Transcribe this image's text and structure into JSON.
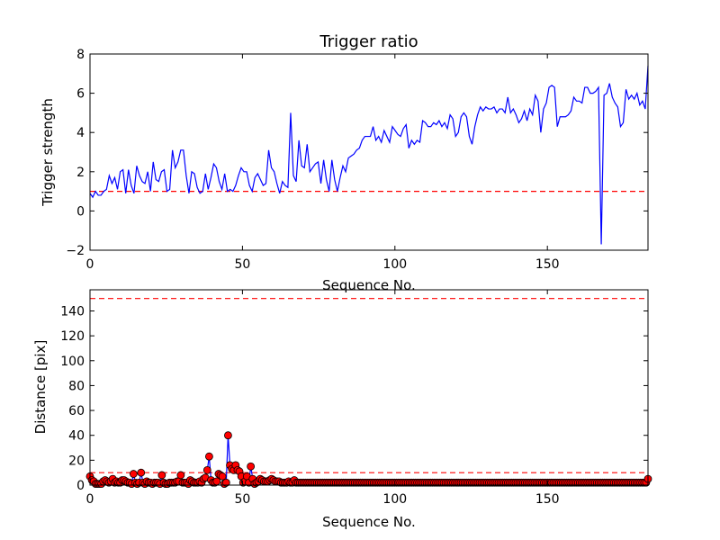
{
  "chart_data": [
    {
      "type": "line",
      "title": "Trigger ratio",
      "xlabel": "Sequence No.",
      "ylabel": "Trigger strength",
      "xlim": [
        0,
        183
      ],
      "ylim": [
        -2,
        8
      ],
      "xticks": [
        0,
        50,
        100,
        150
      ],
      "yticks": [
        -2,
        0,
        2,
        4,
        6,
        8
      ],
      "threshold": 1.0,
      "colors": {
        "line": "#0000ff",
        "threshold": "#ff0000"
      },
      "series": [
        {
          "values": [
            0.9,
            0.7,
            1.0,
            0.8,
            0.8,
            1.0,
            1.1,
            1.8,
            1.4,
            1.7,
            1.1,
            2.0,
            2.1,
            0.9,
            2.1,
            1.3,
            0.9,
            2.3,
            1.8,
            1.5,
            1.4,
            2.0,
            1.0,
            2.5,
            1.6,
            1.5,
            2.0,
            2.1,
            1.0,
            1.1,
            3.1,
            2.2,
            2.5,
            3.1,
            3.1,
            1.8,
            0.9,
            2.0,
            1.9,
            1.2,
            0.9,
            1.0,
            1.9,
            1.1,
            1.7,
            2.4,
            2.2,
            1.5,
            1.1,
            1.9,
            1.0,
            1.1,
            1.0,
            1.3,
            1.8,
            2.2,
            2.0,
            2.0,
            1.3,
            1.0,
            1.7,
            1.9,
            1.6,
            1.3,
            1.4,
            3.1,
            2.2,
            2.0,
            1.4,
            0.9,
            1.5,
            1.3,
            1.2,
            5.0,
            1.8,
            1.5,
            3.6,
            2.3,
            2.2,
            3.4,
            2.0,
            2.2,
            2.4,
            2.5,
            1.4,
            2.6,
            1.6,
            1.0,
            2.6,
            1.6,
            1.0,
            1.7,
            2.3,
            2.0,
            2.7,
            2.8,
            2.9,
            3.1,
            3.2,
            3.6,
            3.8,
            3.8,
            3.8,
            4.3,
            3.6,
            3.8,
            3.5,
            4.1,
            3.8,
            3.5,
            4.3,
            4.1,
            3.9,
            3.8,
            4.2,
            4.4,
            3.2,
            3.6,
            3.4,
            3.6,
            3.5,
            4.6,
            4.5,
            4.3,
            4.3,
            4.5,
            4.4,
            4.6,
            4.3,
            4.5,
            4.2,
            4.9,
            4.7,
            3.8,
            4.0,
            4.8,
            5.0,
            4.8,
            3.8,
            3.4,
            4.3,
            4.9,
            5.3,
            5.1,
            5.3,
            5.2,
            5.2,
            5.3,
            5.0,
            5.2,
            5.2,
            5.0,
            5.8,
            5.0,
            5.2,
            4.9,
            4.5,
            4.7,
            5.1,
            4.6,
            5.2,
            4.9,
            5.9,
            5.6,
            4.0,
            5.2,
            5.5,
            6.3,
            6.4,
            6.3,
            4.3,
            4.8,
            4.8,
            4.8,
            4.9,
            5.1,
            5.8,
            5.6,
            5.6,
            5.5,
            6.3,
            6.3,
            6.0,
            6.0,
            6.1,
            6.3,
            -1.7,
            5.9,
            6.0,
            6.5,
            5.8,
            5.5,
            5.3,
            4.3,
            4.5,
            6.2,
            5.7,
            5.9,
            5.7,
            6.0,
            5.4,
            5.6,
            5.2,
            7.4
          ]
        }
      ]
    },
    {
      "type": "line",
      "xlabel": "Sequence No.",
      "ylabel": "Distance [pix]",
      "xlim": [
        0,
        183
      ],
      "ylim": [
        0,
        157
      ],
      "xticks": [
        0,
        50,
        100,
        150
      ],
      "yticks": [
        0,
        20,
        40,
        60,
        80,
        100,
        120,
        140
      ],
      "thresholds": [
        10,
        150
      ],
      "markers": true,
      "colors": {
        "line": "#0000ff",
        "marker": "#ff0000",
        "threshold": "#ff0000"
      },
      "series": [
        {
          "values": [
            7,
            4,
            3,
            1,
            1,
            1,
            1,
            3,
            4,
            3,
            2,
            3,
            5,
            2,
            3,
            2,
            2,
            4,
            4,
            3,
            2,
            2,
            1,
            9,
            2,
            1,
            2,
            10,
            2,
            1,
            3,
            2,
            2,
            1,
            2,
            2,
            2,
            1,
            8,
            2,
            1,
            1,
            2,
            2,
            2,
            2,
            3,
            3,
            8,
            2,
            2,
            2,
            1,
            4,
            3,
            2,
            2,
            2,
            3,
            2,
            5,
            6,
            12,
            23,
            4,
            2,
            2,
            3,
            9,
            8,
            7,
            1,
            2,
            40,
            16,
            13,
            12,
            16,
            12,
            11,
            7,
            2,
            3,
            7,
            2,
            15,
            5,
            1,
            2,
            3,
            5,
            4,
            3,
            3,
            3,
            4,
            5,
            4,
            3,
            3,
            3,
            2,
            2,
            2,
            2,
            3,
            2,
            2,
            4,
            2,
            2,
            2,
            2,
            2,
            2,
            2,
            2,
            2,
            2,
            2,
            2,
            2,
            2,
            2,
            2,
            2,
            2,
            2,
            2,
            2,
            2,
            2,
            2,
            2,
            2,
            2,
            2,
            2,
            2,
            2,
            2,
            2,
            2,
            2,
            2,
            2,
            2,
            2,
            2,
            2,
            2,
            2,
            2,
            2,
            2,
            2,
            2,
            2,
            2,
            2,
            2,
            2,
            2,
            2,
            2,
            2,
            2,
            2,
            2,
            2,
            2,
            2,
            2,
            2,
            2,
            2,
            2,
            2,
            2,
            2,
            2,
            2,
            2,
            2,
            2,
            2,
            2,
            2,
            2,
            2,
            2,
            2,
            2,
            2,
            2,
            2,
            2,
            2,
            2,
            2,
            2,
            2,
            2,
            2,
            2,
            2,
            2,
            2,
            2,
            2,
            2,
            2,
            2,
            2,
            2,
            2,
            2,
            2,
            2,
            2,
            2,
            2,
            2,
            2,
            2,
            2,
            2,
            2,
            2,
            2,
            2,
            2,
            2,
            2,
            2,
            2,
            2,
            2,
            2,
            2,
            2,
            2,
            2,
            2,
            2,
            2,
            2,
            2,
            2,
            2,
            2,
            2,
            2,
            2,
            2,
            2,
            2,
            2,
            2,
            2,
            2,
            2,
            2,
            2,
            2,
            2,
            2,
            2,
            2,
            2,
            2,
            2,
            2,
            2,
            2,
            2,
            2,
            2,
            2,
            2,
            2,
            2,
            2,
            2,
            2,
            2,
            2,
            2,
            2,
            2,
            2,
            2,
            2,
            2,
            2,
            5
          ]
        }
      ]
    }
  ]
}
